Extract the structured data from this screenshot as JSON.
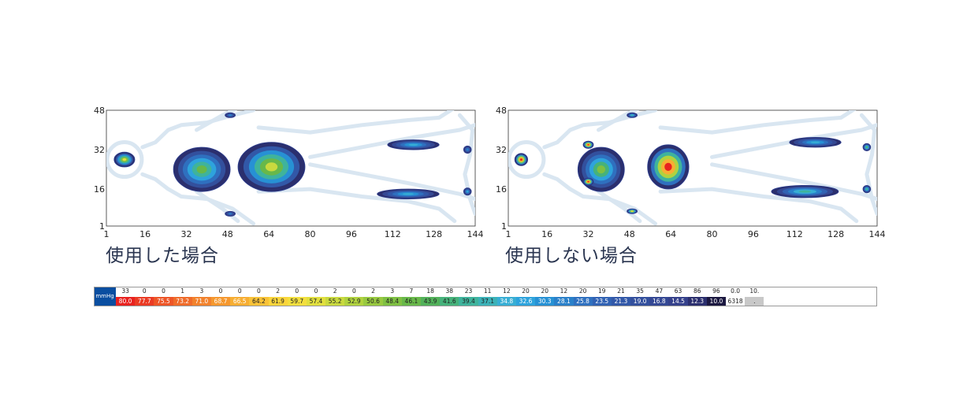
{
  "chart_data": [
    {
      "type": "heatmap",
      "title": "使用した場合",
      "x_ticks": [
        "1",
        "16",
        "32",
        "48",
        "64",
        "80",
        "96",
        "112",
        "128",
        "144"
      ],
      "y_ticks": [
        "48",
        "32",
        "16",
        "1"
      ],
      "xlim": [
        1,
        144
      ],
      "ylim": [
        1,
        48
      ],
      "blobs": [
        {
          "part": "head",
          "cx": 8,
          "cy": 28,
          "rx": 4,
          "ry": 3,
          "peak": 58
        },
        {
          "part": "shoulders",
          "cx": 38,
          "cy": 24,
          "rx": 11,
          "ry": 9,
          "peak": 46
        },
        {
          "part": "hips",
          "cx": 65,
          "cy": 25,
          "rx": 13,
          "ry": 10,
          "peak": 56
        },
        {
          "part": "upper-hand",
          "cx": 49,
          "cy": 46,
          "rx": 2,
          "ry": 1,
          "peak": 30
        },
        {
          "part": "lower-hand",
          "cx": 49,
          "cy": 6,
          "rx": 2,
          "ry": 1,
          "peak": 28
        },
        {
          "part": "upper-leg",
          "cx": 120,
          "cy": 34,
          "rx": 10,
          "ry": 2,
          "peak": 34
        },
        {
          "part": "lower-leg",
          "cx": 118,
          "cy": 14,
          "rx": 12,
          "ry": 2,
          "peak": 34
        },
        {
          "part": "upper-foot",
          "cx": 141,
          "cy": 32,
          "rx": 1.5,
          "ry": 1.5,
          "peak": 30
        },
        {
          "part": "lower-foot",
          "cx": 141,
          "cy": 15,
          "rx": 1.5,
          "ry": 1.5,
          "peak": 34
        }
      ]
    },
    {
      "type": "heatmap",
      "title": "使用しない場合",
      "x_ticks": [
        "1",
        "16",
        "32",
        "48",
        "64",
        "80",
        "96",
        "112",
        "128",
        "144"
      ],
      "y_ticks": [
        "48",
        "32",
        "16",
        "1"
      ],
      "xlim": [
        1,
        144
      ],
      "ylim": [
        1,
        48
      ],
      "blobs": [
        {
          "part": "head",
          "cx": 6,
          "cy": 28,
          "rx": 2.5,
          "ry": 2.5,
          "peak": 80
        },
        {
          "part": "shoulders",
          "cx": 37,
          "cy": 24,
          "rx": 9,
          "ry": 9,
          "peak": 48
        },
        {
          "part": "left-shoulder-hot",
          "cx": 32,
          "cy": 34,
          "rx": 2,
          "ry": 1.5,
          "peak": 80
        },
        {
          "part": "right-shoulder-hot",
          "cx": 32,
          "cy": 19,
          "rx": 2,
          "ry": 1.5,
          "peak": 80
        },
        {
          "part": "hips",
          "cx": 63,
          "cy": 25,
          "rx": 8,
          "ry": 9,
          "peak": 80
        },
        {
          "part": "upper-hand",
          "cx": 49,
          "cy": 46,
          "rx": 2,
          "ry": 1,
          "peak": 40
        },
        {
          "part": "lower-hand",
          "cx": 49,
          "cy": 7,
          "rx": 2,
          "ry": 1,
          "peak": 62
        },
        {
          "part": "upper-leg",
          "cx": 120,
          "cy": 35,
          "rx": 10,
          "ry": 2,
          "peak": 34
        },
        {
          "part": "lower-leg",
          "cx": 116,
          "cy": 15,
          "rx": 13,
          "ry": 2.5,
          "peak": 40
        },
        {
          "part": "upper-foot",
          "cx": 140,
          "cy": 33,
          "rx": 1.5,
          "ry": 1.5,
          "peak": 46
        },
        {
          "part": "lower-foot",
          "cx": 140,
          "cy": 16,
          "rx": 1.5,
          "ry": 1.5,
          "peak": 42
        }
      ]
    }
  ],
  "legend": {
    "unit": "mmHg",
    "counts": [
      "33",
      "0",
      "0",
      "1",
      "3",
      "0",
      "0",
      "0",
      "2",
      "0",
      "0",
      "2",
      "0",
      "2",
      "3",
      "7",
      "18",
      "38",
      "23",
      "11",
      "12",
      "20",
      "20",
      "12",
      "20",
      "19",
      "21",
      "35",
      "47",
      "63",
      "86",
      "96",
      "0.0",
      "10."
    ],
    "values": [
      "80.0",
      "77.7",
      "75.5",
      "73.2",
      "71.0",
      "68.7",
      "66.5",
      "64.2",
      "61.9",
      "59.7",
      "57.4",
      "55.2",
      "52.9",
      "50.6",
      "48.4",
      "46.1",
      "43.9",
      "41.6",
      "39.4",
      "37.1",
      "34.8",
      "32.6",
      "30.3",
      "28.1",
      "25.8",
      "23.5",
      "21.3",
      "19.0",
      "16.8",
      "14.5",
      "12.3",
      "10.0",
      "6318",
      "."
    ],
    "colors": [
      "#e8221f",
      "#ea3b24",
      "#ed5527",
      "#ef6b2a",
      "#f2822d",
      "#f5982f",
      "#f7ae33",
      "#f9c238",
      "#fbd53c",
      "#f3df3f",
      "#e1df3f",
      "#c9d93f",
      "#b0d23f",
      "#98c940",
      "#7fc043",
      "#68b84a",
      "#52b15a",
      "#46b27b",
      "#3fb39c",
      "#3cb2b8",
      "#38aed4",
      "#2ea3dc",
      "#2791d4",
      "#2a80c9",
      "#2f70bf",
      "#3162b3",
      "#3258a8",
      "#33509d",
      "#344894",
      "#35418b",
      "#2b2f6e",
      "#1b1840",
      "#ffffff",
      "#c8c8c8"
    ]
  }
}
